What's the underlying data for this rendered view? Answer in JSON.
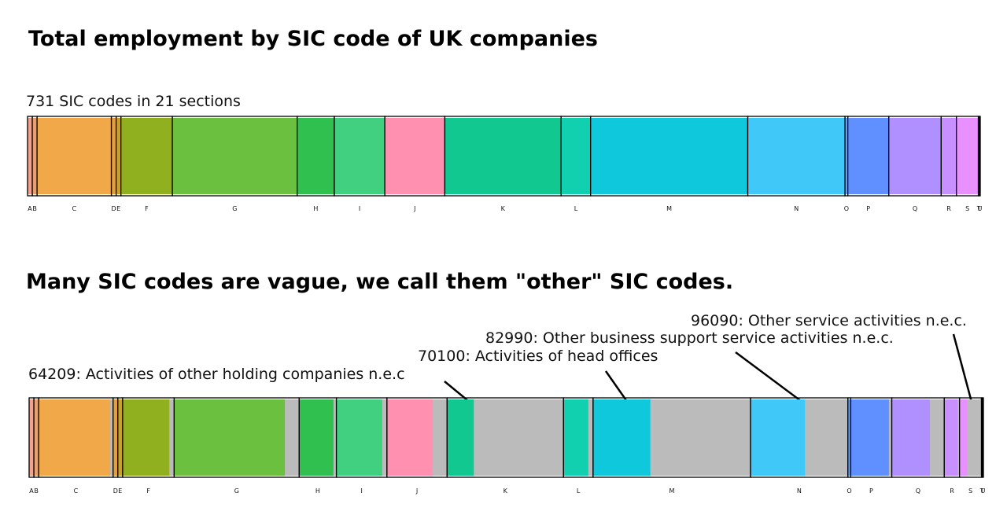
{
  "chart_data": [
    {
      "type": "strip",
      "title": "Total employment by SIC code of UK companies",
      "subtitle": "731 SIC codes in 21 sections",
      "categories": [
        "A",
        "B",
        "C",
        "D",
        "E",
        "F",
        "G",
        "H",
        "I",
        "J",
        "K",
        "L",
        "M",
        "N",
        "O",
        "P",
        "Q",
        "R",
        "S",
        "T",
        "U"
      ],
      "values": [
        0.5,
        0.5,
        7.8,
        0.5,
        0.5,
        5.4,
        13.1,
        3.9,
        5.3,
        6.3,
        12.2,
        3.1,
        16.5,
        10.2,
        0.3,
        4.3,
        5.5,
        1.6,
        2.3,
        0.1,
        0.1
      ],
      "colors": [
        "#f4a08a",
        "#e8a070",
        "#f0a848",
        "#e0a040",
        "#c8a030",
        "#90b020",
        "#6cc040",
        "#30c050",
        "#40d080",
        "#ff90b0",
        "#10c890",
        "#10d0b0",
        "#10c8dc",
        "#40c8f8",
        "#60a0ff",
        "#6090ff",
        "#b090ff",
        "#c890ff",
        "#e890ff",
        "#f090ff",
        "#f0a0ff"
      ]
    },
    {
      "type": "strip",
      "title": "Many SIC codes are vague, we call them \"other\" SIC codes.",
      "categories": [
        "A",
        "B",
        "C",
        "D",
        "E",
        "F",
        "G",
        "H",
        "I",
        "J",
        "K",
        "L",
        "M",
        "N",
        "O",
        "P",
        "Q",
        "R",
        "S",
        "T",
        "U"
      ],
      "values": [
        0.5,
        0.5,
        7.8,
        0.5,
        0.5,
        5.4,
        13.1,
        3.9,
        5.3,
        6.3,
        12.2,
        3.1,
        16.5,
        10.2,
        0.3,
        4.3,
        5.5,
        1.6,
        2.3,
        0.1,
        0.1
      ],
      "other_values": [
        0,
        0,
        0.3,
        0,
        0,
        0.5,
        1.5,
        0.3,
        0.5,
        1.5,
        9.4,
        0.5,
        10.5,
        4.5,
        0,
        0.3,
        1.5,
        0.2,
        1.5,
        0,
        0
      ],
      "colors": [
        "#f4a08a",
        "#e8a070",
        "#f0a848",
        "#e0a040",
        "#c8a030",
        "#90b020",
        "#6cc040",
        "#30c050",
        "#40d080",
        "#ff90b0",
        "#10c890",
        "#10d0b0",
        "#10c8dc",
        "#40c8f8",
        "#60a0ff",
        "#6090ff",
        "#b090ff",
        "#c890ff",
        "#e890ff",
        "#f090ff",
        "#f0a0ff"
      ],
      "other_color": "#bbbbbb",
      "annotations": [
        "96090: Other service activities n.e.c.",
        "82990: Other business support service activities n.e.c.",
        "70100: Activities of head offices",
        "64209: Activities of other holding companies n.e.c"
      ]
    }
  ]
}
